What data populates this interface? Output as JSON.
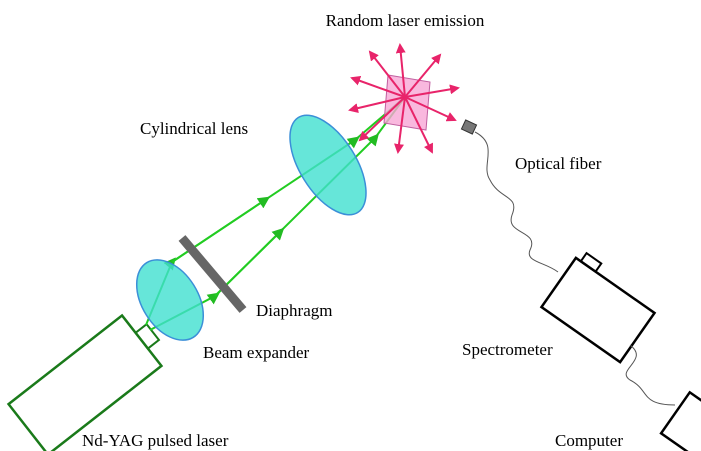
{
  "labels": {
    "emission": "Random laser emission",
    "cylindrical_lens": "Cylindrical lens",
    "optical_fiber": "Optical fiber",
    "diaphragm": "Diaphragm",
    "beam_expander": "Beam expander",
    "spectrometer": "Spectrometer",
    "laser": "Nd-YAG pulsed laser",
    "computer": "Computer"
  }
}
